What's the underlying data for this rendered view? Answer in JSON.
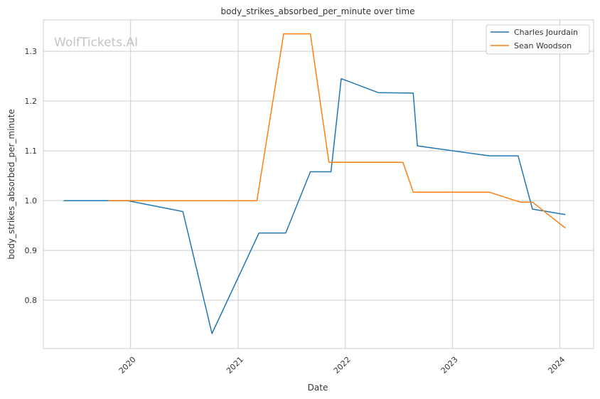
{
  "chart_data": {
    "type": "line",
    "title": "body_strikes_absorbed_per_minute over time",
    "xlabel": "Date",
    "ylabel": "body_strikes_absorbed_per_minute",
    "watermark": "WolfTickets.AI",
    "x_ticks": [
      "2020",
      "2021",
      "2022",
      "2023",
      "2024"
    ],
    "y_ticks": [
      "0.8",
      "0.9",
      "1.0",
      "1.1",
      "1.2",
      "1.3"
    ],
    "xlim": [
      "2019-03-10",
      "2024-04-25"
    ],
    "ylim": [
      0.703,
      1.363
    ],
    "grid": true,
    "legend_position": "top-right",
    "series": [
      {
        "name": "Charles Jourdain",
        "color": "#1f77b4",
        "points": [
          {
            "x": "2019-05-18",
            "y": 1.0
          },
          {
            "x": "2019-12-21",
            "y": 1.0
          },
          {
            "x": "2020-06-27",
            "y": 0.978
          },
          {
            "x": "2020-10-04",
            "y": 0.733
          },
          {
            "x": "2021-03-13",
            "y": 0.935
          },
          {
            "x": "2021-06-12",
            "y": 0.935
          },
          {
            "x": "2021-09-04",
            "y": 1.058
          },
          {
            "x": "2021-11-13",
            "y": 1.058
          },
          {
            "x": "2021-12-18",
            "y": 1.245
          },
          {
            "x": "2022-04-23",
            "y": 1.217
          },
          {
            "x": "2022-08-20",
            "y": 1.216
          },
          {
            "x": "2022-09-03",
            "y": 1.11
          },
          {
            "x": "2023-05-06",
            "y": 1.09
          },
          {
            "x": "2023-08-12",
            "y": 1.09
          },
          {
            "x": "2023-09-30",
            "y": 0.983
          },
          {
            "x": "2024-01-20",
            "y": 0.972
          }
        ]
      },
      {
        "name": "Sean Woodson",
        "color": "#ff7f0e",
        "points": [
          {
            "x": "2019-10-18",
            "y": 1.0
          },
          {
            "x": "2021-03-06",
            "y": 1.0
          },
          {
            "x": "2021-06-05",
            "y": 1.335
          },
          {
            "x": "2021-09-04",
            "y": 1.335
          },
          {
            "x": "2021-11-06",
            "y": 1.077
          },
          {
            "x": "2022-07-16",
            "y": 1.077
          },
          {
            "x": "2022-08-20",
            "y": 1.017
          },
          {
            "x": "2023-05-06",
            "y": 1.017
          },
          {
            "x": "2023-08-19",
            "y": 0.997
          },
          {
            "x": "2023-09-30",
            "y": 0.997
          },
          {
            "x": "2024-01-20",
            "y": 0.945
          }
        ]
      }
    ]
  }
}
